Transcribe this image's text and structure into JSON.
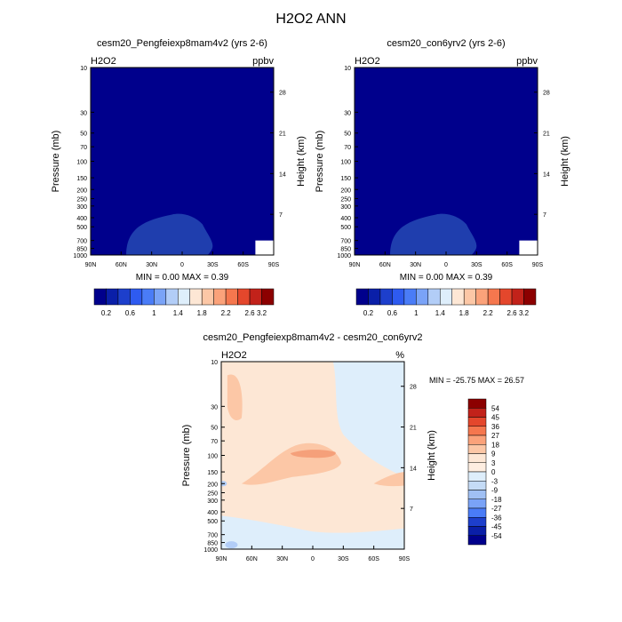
{
  "page_title": "H2O2 ANN",
  "chart_data": [
    {
      "type": "heatmap",
      "title": "cesm20_Pengfeiexp8mam4v2 (yrs 2-6)",
      "left_label": "H2O2",
      "right_label": "ppbv",
      "xlabel": "",
      "ylabel": "Pressure (mb)",
      "ylabel_right": "Height (km)",
      "x_ticks": [
        "90N",
        "60N",
        "30N",
        "0",
        "30S",
        "60S",
        "90S"
      ],
      "y_ticks": [
        "10",
        "30",
        "50",
        "70",
        "100",
        "150",
        "200",
        "250",
        "300",
        "400",
        "500",
        "700",
        "850",
        "1000"
      ],
      "y_ticks_right": [
        "28",
        "21",
        "14",
        "7"
      ],
      "xlim": [
        90,
        -90
      ],
      "ylim": [
        1000,
        10
      ],
      "y_scale": "log",
      "stats": "MIN =   0.00   MAX =   0.39",
      "min": 0.0,
      "max": 0.39,
      "colorbar_ticks": [
        "0.2",
        "0.6",
        "1",
        "1.4",
        "1.8",
        "2.2",
        "2.6",
        "3.2"
      ],
      "colorbar_colors": [
        "#00008c",
        "#0a1fa8",
        "#1d3fcc",
        "#2e5bf0",
        "#4a7cf7",
        "#7aa3f7",
        "#b2cdf7",
        "#deeefb",
        "#fde7d5",
        "#fcc7a6",
        "#fba27a",
        "#f5774e",
        "#e4472c",
        "#c2221a",
        "#8c0000"
      ],
      "fill_color": "#00008c",
      "region_color": "#1f3eae"
    },
    {
      "type": "heatmap",
      "title": "cesm20_con6yrv2 (yrs 2-6)",
      "left_label": "H2O2",
      "right_label": "ppbv",
      "xlabel": "",
      "ylabel": "Pressure (mb)",
      "ylabel_right": "Height (km)",
      "x_ticks": [
        "90N",
        "60N",
        "30N",
        "0",
        "30S",
        "60S",
        "90S"
      ],
      "y_ticks": [
        "10",
        "30",
        "50",
        "70",
        "100",
        "150",
        "200",
        "250",
        "300",
        "400",
        "500",
        "700",
        "850",
        "1000"
      ],
      "y_ticks_right": [
        "28",
        "21",
        "14",
        "7"
      ],
      "xlim": [
        90,
        -90
      ],
      "ylim": [
        1000,
        10
      ],
      "y_scale": "log",
      "stats": "MIN =   0.00   MAX =   0.39",
      "min": 0.0,
      "max": 0.39,
      "colorbar_ticks": [
        "0.2",
        "0.6",
        "1",
        "1.4",
        "1.8",
        "2.2",
        "2.6",
        "3.2"
      ],
      "colorbar_colors": [
        "#00008c",
        "#0a1fa8",
        "#1d3fcc",
        "#2e5bf0",
        "#4a7cf7",
        "#7aa3f7",
        "#b2cdf7",
        "#deeefb",
        "#fde7d5",
        "#fcc7a6",
        "#fba27a",
        "#f5774e",
        "#e4472c",
        "#c2221a",
        "#8c0000"
      ],
      "fill_color": "#00008c",
      "region_color": "#1f3eae"
    },
    {
      "type": "heatmap",
      "title": "cesm20_Pengfeiexp8mam4v2 - cesm20_con6yrv2",
      "left_label": "H2O2",
      "right_label": "%",
      "xlabel": "",
      "ylabel": "Pressure (mb)",
      "ylabel_right": "Height (km)",
      "x_ticks": [
        "90N",
        "60N",
        "30N",
        "0",
        "30S",
        "60S",
        "90S"
      ],
      "y_ticks": [
        "10",
        "30",
        "50",
        "70",
        "100",
        "150",
        "200",
        "250",
        "300",
        "400",
        "500",
        "700",
        "850",
        "1000"
      ],
      "y_ticks_right": [
        "28",
        "21",
        "14",
        "7"
      ],
      "xlim": [
        90,
        -90
      ],
      "ylim": [
        1000,
        10
      ],
      "y_scale": "log",
      "stats": "MIN = -25.75  MAX =  26.57",
      "min": -25.75,
      "max": 26.57,
      "colorbar_ticks": [
        "54",
        "45",
        "36",
        "27",
        "18",
        "9",
        "3",
        "0",
        "-3",
        "-9",
        "-18",
        "-27",
        "-36",
        "-45",
        "-54"
      ],
      "colorbar_colors": [
        "#8c0000",
        "#c2221a",
        "#e4472c",
        "#f5774e",
        "#fba27a",
        "#fcc7a6",
        "#fde7d5",
        "#feeee1",
        "#deeefb",
        "#c4dbf6",
        "#a0c0f4",
        "#7aa3f7",
        "#4a7cf7",
        "#1d3fcc",
        "#0a1fa8",
        "#00008c"
      ],
      "background_color": "#deeefb",
      "positive_color": "#fde7d5",
      "medium_color": "#fcc7a6",
      "strong_color": "#f5a07a",
      "negative_color": "#b2cdf7"
    }
  ]
}
